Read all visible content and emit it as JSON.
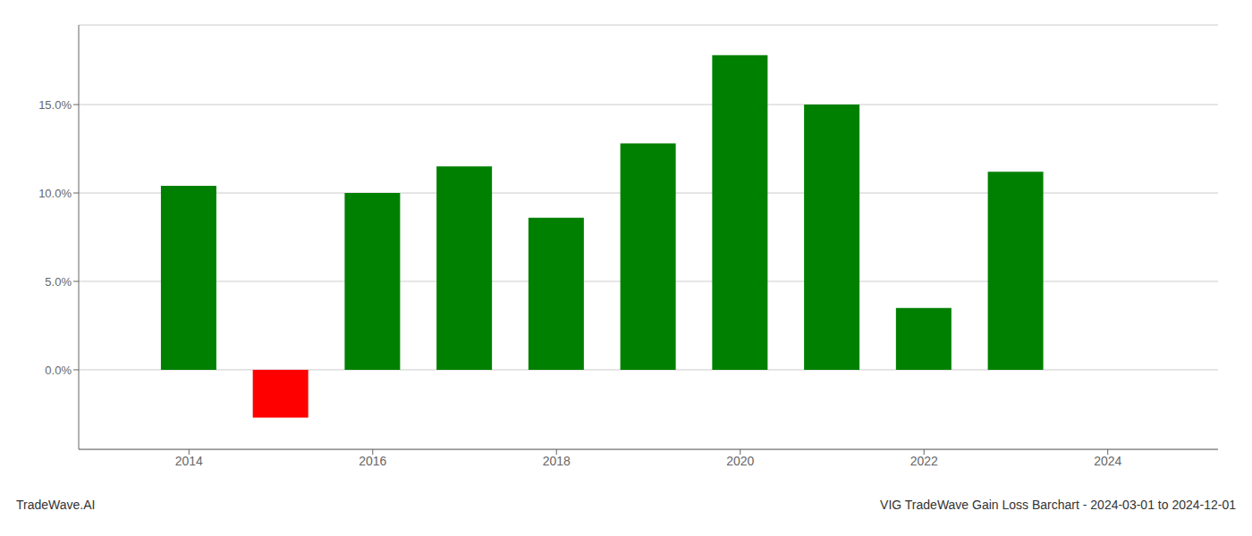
{
  "chart_data": {
    "type": "bar",
    "title": "VIG TradeWave Gain Loss Barchart - 2024-03-01 to 2024-12-01",
    "annotations": [
      "TradeWave.AI"
    ],
    "x": [
      2014,
      2015,
      2016,
      2017,
      2018,
      2019,
      2020,
      2021,
      2022,
      2023
    ],
    "values": [
      0.104,
      -0.027,
      0.1,
      0.115,
      0.086,
      0.128,
      0.178,
      0.15,
      0.035,
      0.112
    ],
    "colors": [
      "#008000",
      "#ff0000",
      "#008000",
      "#008000",
      "#008000",
      "#008000",
      "#008000",
      "#008000",
      "#008000",
      "#008000"
    ],
    "xlim": [
      2012.8,
      2025.2
    ],
    "xticks": [
      2014,
      2016,
      2018,
      2020,
      2022,
      2024
    ],
    "ylim": [
      -0.045,
      0.195
    ],
    "yticks": [
      {
        "value": 0.0,
        "label": "0.0%"
      },
      {
        "value": 0.05,
        "label": "5.0%"
      },
      {
        "value": 0.1,
        "label": "10.0%"
      },
      {
        "value": 0.15,
        "label": "15.0%"
      }
    ],
    "grid": true
  }
}
